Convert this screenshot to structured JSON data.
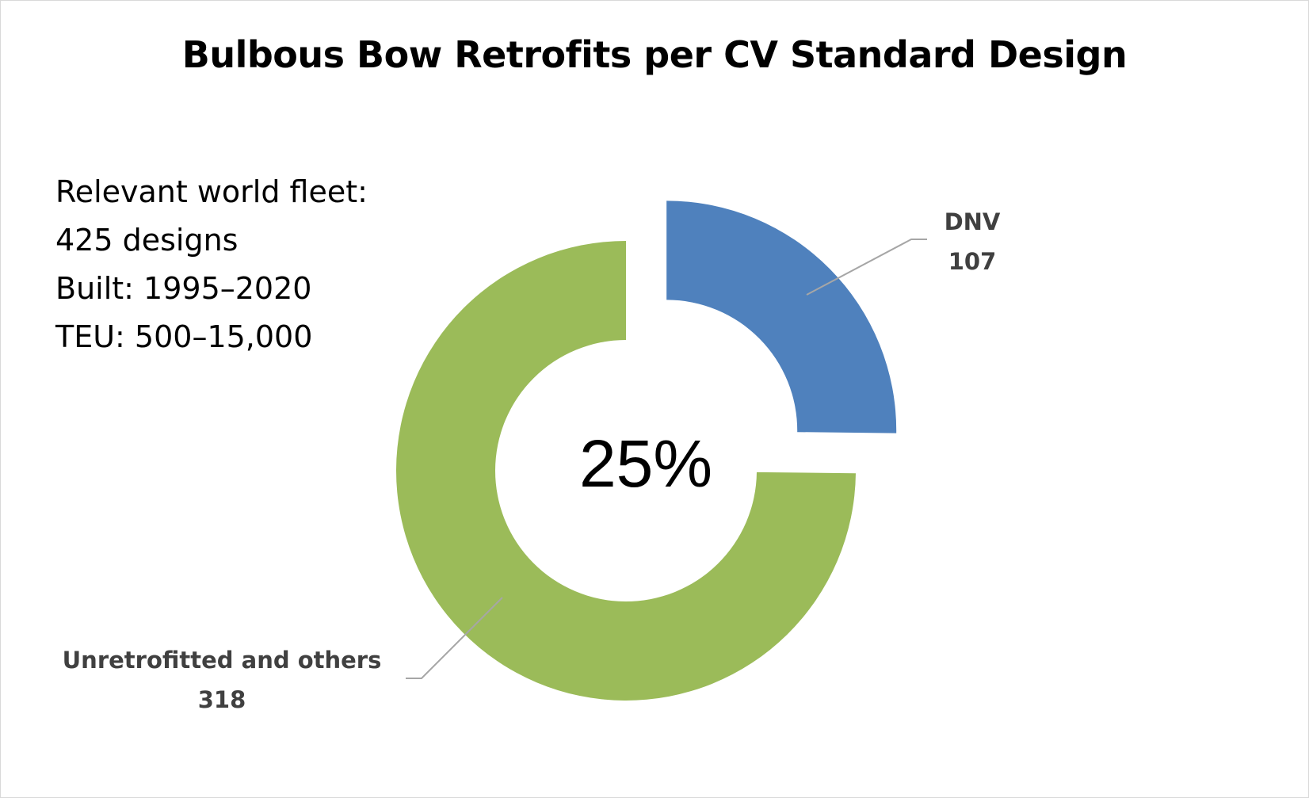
{
  "chart_data": {
    "type": "pie",
    "subtype": "doughnut",
    "title": "Bulbous Bow Retrofits per CV Standard Design",
    "categories": [
      "DNV",
      "Unretrofitted and others"
    ],
    "values": [
      107,
      318
    ],
    "colors": [
      "#4f81bd",
      "#9bbb59"
    ],
    "center_label": "25%",
    "exploded_slice": "DNV",
    "legend": "none",
    "annotation_lines": [
      "Relevant world fleet:",
      "425 designs",
      "Built: 1995–2020",
      "TEU: 500–15,000"
    ]
  }
}
